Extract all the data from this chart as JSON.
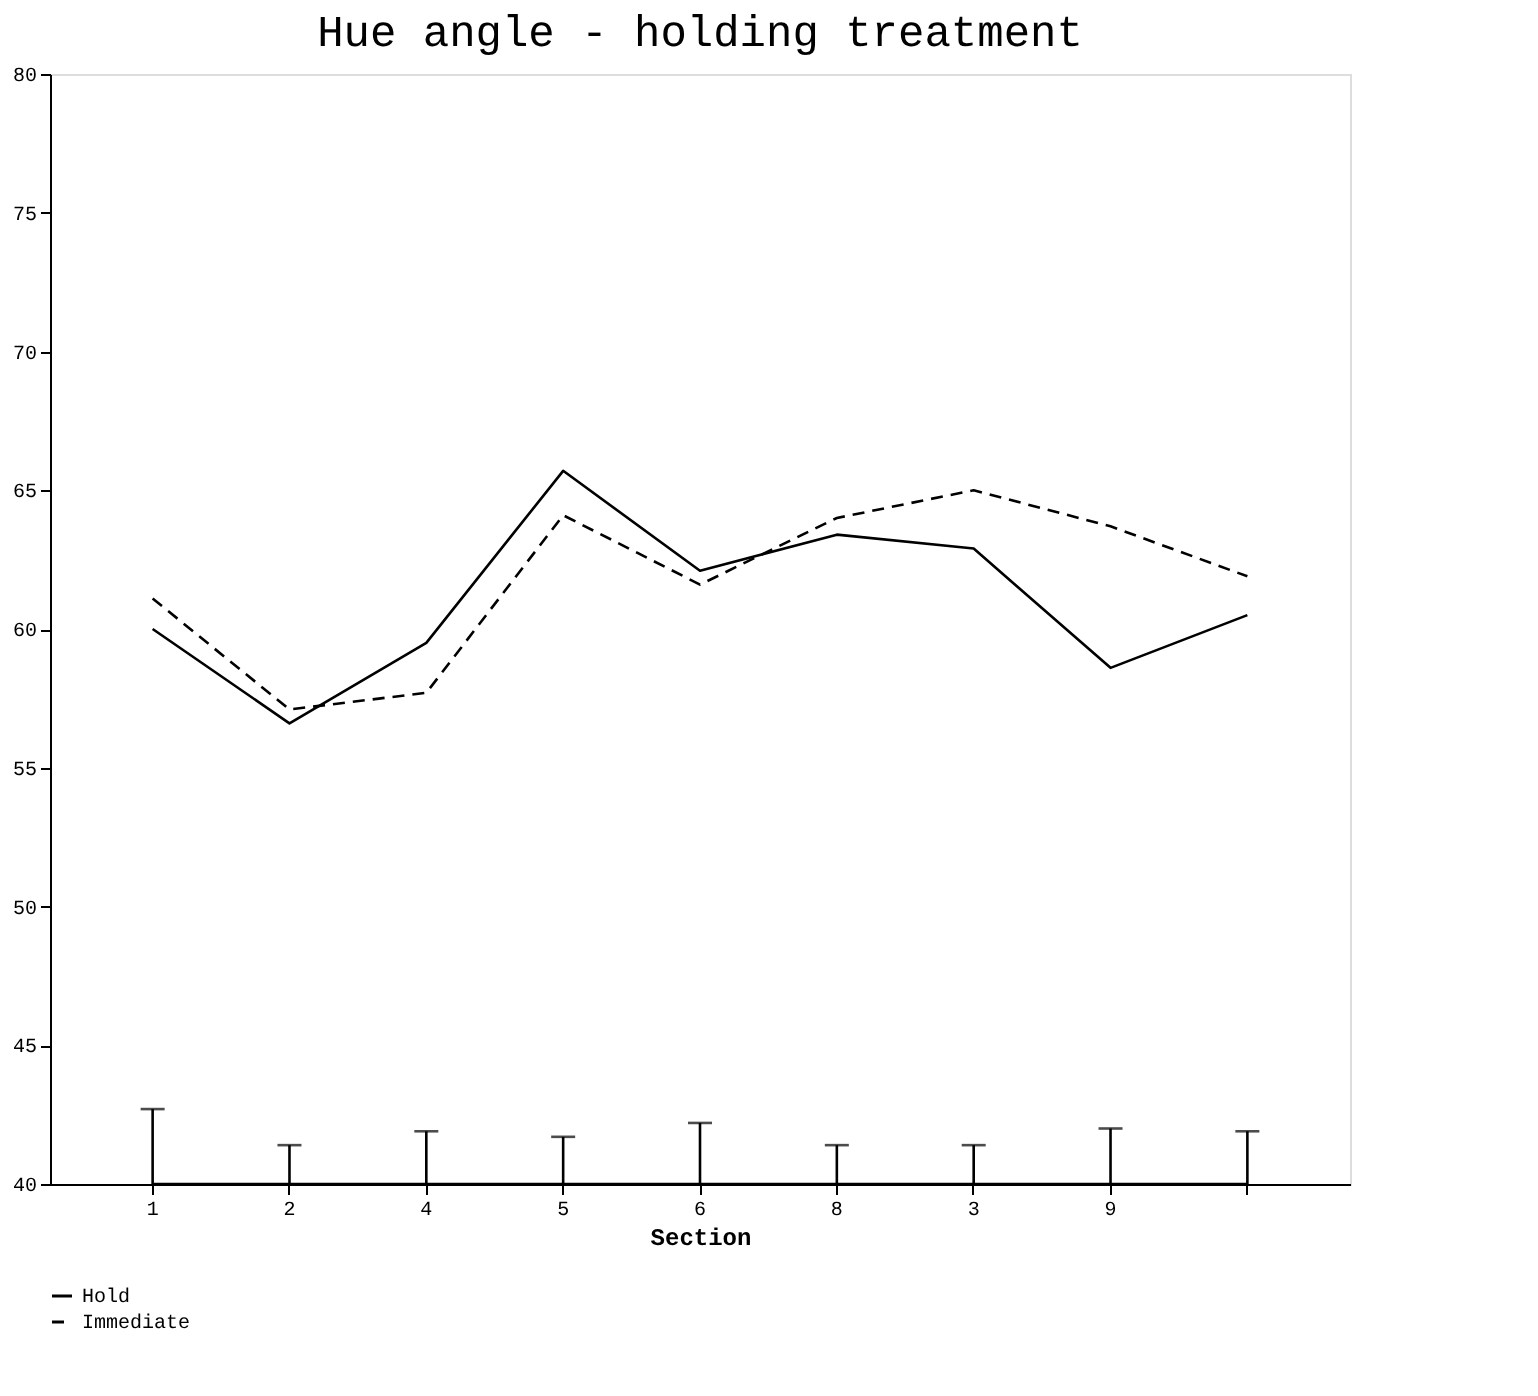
{
  "chart_data": {
    "type": "line",
    "title": "Hue angle - holding treatment",
    "xlabel": "Section",
    "categories": [
      "1",
      "2",
      "4",
      "5",
      "6",
      "8",
      "3",
      "9",
      null
    ],
    "series": [
      {
        "name": "Hold",
        "color": "#000000",
        "line_style": "solid",
        "values": [
          60.0,
          56.6,
          59.5,
          65.7,
          62.1,
          63.4,
          62.9,
          58.6,
          60.5
        ]
      },
      {
        "name": "Immediate",
        "color": "#000000",
        "line_style": "dashed",
        "values": [
          61.1,
          57.1,
          57.7,
          64.1,
          61.6,
          64.0,
          65.0,
          63.7,
          61.9
        ]
      },
      {
        "color": "#000000",
        "line_style": "solid",
        "values": [
          40,
          40,
          40,
          40,
          40,
          40,
          40,
          40,
          40
        ],
        "errors": [
          [
            40,
            42.7
          ],
          [
            40,
            41.4
          ],
          [
            40,
            41.9
          ],
          [
            40,
            41.7
          ],
          [
            40,
            42.2
          ],
          [
            40,
            41.4
          ],
          [
            40,
            41.4
          ],
          [
            40,
            42.0
          ],
          [
            40,
            41.9
          ]
        ]
      }
    ],
    "ylim": [
      40,
      80
    ],
    "yticks": [
      40,
      45,
      50,
      55,
      60,
      65,
      70,
      75,
      80
    ],
    "grid": false,
    "legend": "bottom left",
    "marker": "none"
  }
}
